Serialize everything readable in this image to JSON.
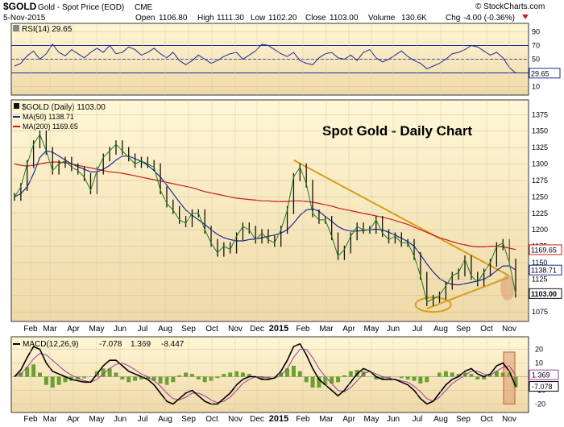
{
  "header": {
    "symbol": "$GOLD",
    "name": "Gold - Spot Price (EOD)",
    "exchange": "CME",
    "date": "5-Nov-2015",
    "watermark": "© StockCharts.com",
    "open_label": "Open",
    "open": "1106.80",
    "high_label": "High",
    "high": "1111.30",
    "low_label": "Low",
    "low": "1102.20",
    "close_label": "Close",
    "close": "1103.00",
    "volume_label": "Volume",
    "volume": "130.6K",
    "chg_label": "Chg",
    "chg": "-4.00 (-0.36%)"
  },
  "chart_data": [
    {
      "type": "line",
      "panel": "RSI",
      "legend": "RSI(14) 29.65",
      "y_ticks": [
        10,
        30,
        50,
        70,
        90
      ],
      "guides": [
        30,
        50,
        70
      ],
      "ylim": [
        0,
        100
      ],
      "current_value": "29.65",
      "series": [
        {
          "name": "RSI(14)",
          "color": "#1a2a9a",
          "values": [
            40,
            44,
            55,
            62,
            50,
            58,
            72,
            60,
            55,
            64,
            58,
            52,
            60,
            66,
            60,
            70,
            58,
            60,
            68,
            64,
            56,
            60,
            66,
            58,
            52,
            60,
            48,
            42,
            48,
            56,
            50,
            44,
            48,
            54,
            58,
            60,
            50,
            56,
            62,
            72,
            70,
            64,
            58,
            54,
            60,
            48,
            44,
            42,
            52,
            58,
            60,
            52,
            50,
            56,
            48,
            60,
            64,
            52,
            46,
            50,
            56,
            62,
            54,
            48,
            44,
            36,
            40,
            44,
            50,
            58,
            60,
            64,
            70,
            68,
            62,
            56,
            60,
            52,
            38,
            30
          ]
        }
      ]
    },
    {
      "type": "line",
      "panel": "price",
      "title": "Spot Gold - Daily Chart",
      "x_ticks": [
        "Feb",
        "Mar",
        "Apr",
        "May",
        "Jun",
        "Jul",
        "Aug",
        "Sep",
        "Oct",
        "Nov",
        "Dec",
        "2015",
        "Feb",
        "Mar",
        "Apr",
        "May",
        "Jun",
        "Jul",
        "Aug",
        "Sep",
        "Oct",
        "Nov"
      ],
      "y_ticks": [
        1075,
        1100,
        1125,
        1150,
        1175,
        1200,
        1225,
        1250,
        1275,
        1300,
        1325,
        1350,
        1375
      ],
      "ylim": [
        1063,
        1395
      ],
      "price_label": "$GOLD (Daily) 1103.00",
      "ma50_label": "MA(50) 1138.71",
      "ma200_label": "MA(200) 1169.65",
      "axis_tags": [
        "1169.65",
        "1138.71",
        "1103.00"
      ],
      "series": [
        {
          "name": "$GOLD",
          "color": "#1a7a1a",
          "values": [
            1250,
            1265,
            1300,
            1330,
            1345,
            1320,
            1290,
            1300,
            1305,
            1295,
            1290,
            1280,
            1260,
            1290,
            1310,
            1320,
            1330,
            1320,
            1310,
            1300,
            1305,
            1300,
            1295,
            1260,
            1240,
            1230,
            1215,
            1210,
            1225,
            1225,
            1200,
            1180,
            1165,
            1175,
            1170,
            1190,
            1205,
            1200,
            1185,
            1195,
            1185,
            1180,
            1200,
            1230,
            1280,
            1295,
            1270,
            1225,
            1215,
            1215,
            1190,
            1160,
            1170,
            1190,
            1205,
            1200,
            1200,
            1215,
            1195,
            1185,
            1190,
            1180,
            1180,
            1160,
            1130,
            1090,
            1095,
            1100,
            1115,
            1130,
            1135,
            1155,
            1130,
            1120,
            1135,
            1150,
            1175,
            1180,
            1150,
            1103
          ]
        },
        {
          "name": "MA(50)",
          "color": "#1a2a9a",
          "values": [
            1250,
            1255,
            1265,
            1285,
            1310,
            1320,
            1318,
            1312,
            1306,
            1300,
            1296,
            1292,
            1288,
            1288,
            1292,
            1298,
            1306,
            1312,
            1312,
            1308,
            1304,
            1298,
            1290,
            1280,
            1268,
            1255,
            1242,
            1230,
            1222,
            1215,
            1208,
            1200,
            1193,
            1188,
            1185,
            1183,
            1183,
            1185,
            1186,
            1188,
            1190,
            1192,
            1195,
            1200,
            1210,
            1222,
            1230,
            1232,
            1228,
            1220,
            1213,
            1205,
            1200,
            1198,
            1198,
            1199,
            1200,
            1201,
            1200,
            1196,
            1192,
            1187,
            1182,
            1175,
            1162,
            1148,
            1136,
            1126,
            1120,
            1117,
            1116,
            1118,
            1120,
            1122,
            1125,
            1130,
            1138,
            1145,
            1145,
            1139
          ]
        },
        {
          "name": "MA(200)",
          "color": "#cc1a1a",
          "values": [
            1300,
            1298,
            1297,
            1298,
            1300,
            1302,
            1303,
            1303,
            1302,
            1300,
            1298,
            1296,
            1294,
            1292,
            1290,
            1288,
            1287,
            1286,
            1284,
            1282,
            1280,
            1278,
            1276,
            1274,
            1272,
            1270,
            1268,
            1266,
            1264,
            1261,
            1258,
            1256,
            1254,
            1252,
            1250,
            1248,
            1247,
            1246,
            1245,
            1244,
            1244,
            1243,
            1243,
            1243,
            1244,
            1244,
            1243,
            1242,
            1240,
            1238,
            1236,
            1233,
            1231,
            1229,
            1227,
            1225,
            1223,
            1221,
            1219,
            1217,
            1214,
            1211,
            1208,
            1204,
            1200,
            1196,
            1192,
            1188,
            1185,
            1182,
            1179,
            1177,
            1175,
            1174,
            1174,
            1175,
            1175,
            1174,
            1172,
            1170
          ]
        }
      ],
      "annotations": [
        "resistance trendline",
        "support trendline",
        "bottom ellipse",
        "current price highlight"
      ]
    },
    {
      "type": "line",
      "panel": "MACD",
      "legend_name": "MACD(12,26,9)",
      "legend_values": [
        "-7.078",
        "1.369",
        "-8.447"
      ],
      "y_ticks": [
        -20,
        -10,
        0,
        10,
        20
      ],
      "ylim": [
        -25,
        28
      ],
      "axis_tags": [
        "1.369",
        "-7.078"
      ],
      "series": [
        {
          "name": "MACD",
          "color": "#000000",
          "values": [
            0,
            5,
            14,
            22,
            20,
            10,
            4,
            2,
            0,
            -2,
            -3,
            -4,
            -4,
            2,
            8,
            12,
            12,
            8,
            4,
            2,
            0,
            -2,
            -6,
            -12,
            -18,
            -20,
            -16,
            -12,
            -10,
            -14,
            -18,
            -20,
            -20,
            -16,
            -12,
            -6,
            -2,
            0,
            0,
            -2,
            -2,
            -1,
            4,
            12,
            22,
            24,
            16,
            6,
            -2,
            -6,
            -10,
            -14,
            -10,
            -4,
            2,
            6,
            4,
            0,
            -2,
            -2,
            -2,
            -4,
            -6,
            -10,
            -16,
            -20,
            -18,
            -12,
            -6,
            -2,
            0,
            4,
            6,
            2,
            0,
            2,
            8,
            10,
            4,
            -7
          ]
        },
        {
          "name": "Signal",
          "color": "#9a3aa8",
          "values": [
            0,
            2,
            7,
            13,
            17,
            16,
            12,
            8,
            4,
            1,
            -1,
            -3,
            -4,
            -2,
            2,
            6,
            9,
            10,
            8,
            5,
            2,
            0,
            -3,
            -7,
            -12,
            -16,
            -17,
            -15,
            -12,
            -12,
            -14,
            -17,
            -19,
            -18,
            -15,
            -10,
            -5,
            -2,
            0,
            0,
            -1,
            -1,
            1,
            6,
            14,
            20,
            20,
            14,
            6,
            0,
            -5,
            -10,
            -11,
            -8,
            -3,
            2,
            4,
            2,
            0,
            -1,
            -2,
            -3,
            -4,
            -7,
            -11,
            -16,
            -18,
            -15,
            -10,
            -5,
            -2,
            1,
            4,
            4,
            2,
            1,
            4,
            7,
            8,
            1
          ]
        },
        {
          "name": "Histogram",
          "color": "#6aa030",
          "values": [
            0,
            3,
            7,
            9,
            3,
            -6,
            -8,
            -6,
            -4,
            -3,
            -2,
            -1,
            0,
            4,
            6,
            6,
            3,
            -2,
            -4,
            -3,
            -2,
            -2,
            -3,
            -5,
            -6,
            -4,
            1,
            3,
            2,
            -2,
            -4,
            -3,
            -1,
            2,
            3,
            4,
            3,
            2,
            0,
            -2,
            -1,
            0,
            3,
            6,
            8,
            4,
            -4,
            -8,
            -8,
            -6,
            -5,
            -4,
            1,
            4,
            5,
            4,
            0,
            -2,
            -2,
            -1,
            0,
            -1,
            -2,
            -3,
            -5,
            -4,
            0,
            3,
            4,
            3,
            2,
            3,
            2,
            -2,
            -2,
            1,
            4,
            3,
            3,
            -8
          ]
        }
      ]
    }
  ]
}
